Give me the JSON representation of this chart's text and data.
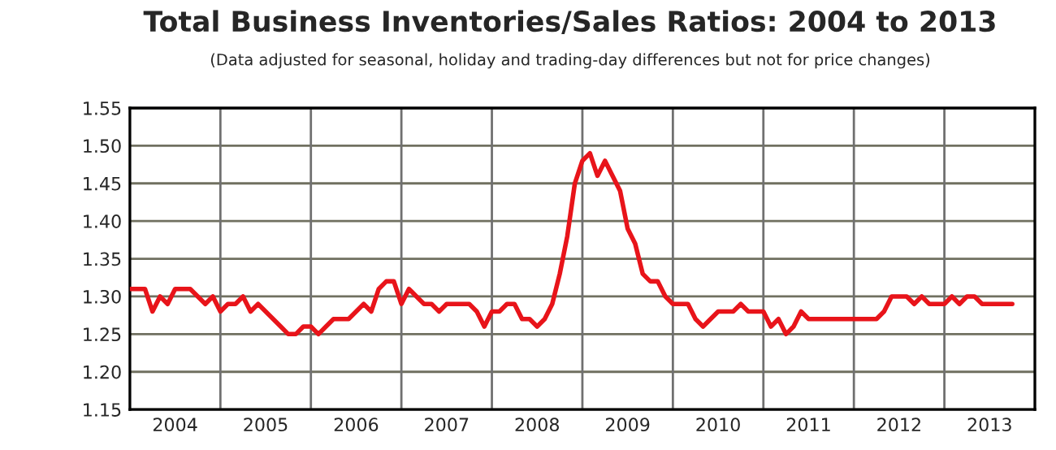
{
  "chart_data": {
    "type": "line",
    "title": "Total Business Inventories/Sales Ratios: 2004 to 2013",
    "subtitle": "(Data adjusted for seasonal, holiday and trading-day differences but not for price changes)",
    "x": [
      "2004-01",
      "2004-02",
      "2004-03",
      "2004-04",
      "2004-05",
      "2004-06",
      "2004-07",
      "2004-08",
      "2004-09",
      "2004-10",
      "2004-11",
      "2004-12",
      "2005-01",
      "2005-02",
      "2005-03",
      "2005-04",
      "2005-05",
      "2005-06",
      "2005-07",
      "2005-08",
      "2005-09",
      "2005-10",
      "2005-11",
      "2005-12",
      "2006-01",
      "2006-02",
      "2006-03",
      "2006-04",
      "2006-05",
      "2006-06",
      "2006-07",
      "2006-08",
      "2006-09",
      "2006-10",
      "2006-11",
      "2006-12",
      "2007-01",
      "2007-02",
      "2007-03",
      "2007-04",
      "2007-05",
      "2007-06",
      "2007-07",
      "2007-08",
      "2007-09",
      "2007-10",
      "2007-11",
      "2007-12",
      "2008-01",
      "2008-02",
      "2008-03",
      "2008-04",
      "2008-05",
      "2008-06",
      "2008-07",
      "2008-08",
      "2008-09",
      "2008-10",
      "2008-11",
      "2008-12",
      "2009-01",
      "2009-02",
      "2009-03",
      "2009-04",
      "2009-05",
      "2009-06",
      "2009-07",
      "2009-08",
      "2009-09",
      "2009-10",
      "2009-11",
      "2009-12",
      "2010-01",
      "2010-02",
      "2010-03",
      "2010-04",
      "2010-05",
      "2010-06",
      "2010-07",
      "2010-08",
      "2010-09",
      "2010-10",
      "2010-11",
      "2010-12",
      "2011-01",
      "2011-02",
      "2011-03",
      "2011-04",
      "2011-05",
      "2011-06",
      "2011-07",
      "2011-08",
      "2011-09",
      "2011-10",
      "2011-11",
      "2011-12",
      "2012-01",
      "2012-02",
      "2012-03",
      "2012-04",
      "2012-05",
      "2012-06",
      "2012-07",
      "2012-08",
      "2012-09",
      "2012-10",
      "2012-11",
      "2012-12",
      "2013-01",
      "2013-02",
      "2013-03",
      "2013-04",
      "2013-05",
      "2013-06",
      "2013-07",
      "2013-08",
      "2013-09",
      "2013-10"
    ],
    "series": [
      {
        "color": "#e8141a",
        "values": [
          1.31,
          1.31,
          1.31,
          1.28,
          1.3,
          1.29,
          1.31,
          1.31,
          1.31,
          1.3,
          1.29,
          1.3,
          1.28,
          1.29,
          1.29,
          1.3,
          1.28,
          1.29,
          1.28,
          1.27,
          1.26,
          1.25,
          1.25,
          1.26,
          1.26,
          1.25,
          1.26,
          1.27,
          1.27,
          1.27,
          1.28,
          1.29,
          1.28,
          1.31,
          1.32,
          1.32,
          1.29,
          1.31,
          1.3,
          1.29,
          1.29,
          1.28,
          1.29,
          1.29,
          1.29,
          1.29,
          1.28,
          1.26,
          1.28,
          1.28,
          1.29,
          1.29,
          1.27,
          1.27,
          1.26,
          1.27,
          1.29,
          1.33,
          1.38,
          1.45,
          1.48,
          1.49,
          1.46,
          1.48,
          1.46,
          1.44,
          1.39,
          1.37,
          1.33,
          1.32,
          1.32,
          1.3,
          1.29,
          1.29,
          1.29,
          1.27,
          1.26,
          1.27,
          1.28,
          1.28,
          1.28,
          1.29,
          1.28,
          1.28,
          1.28,
          1.26,
          1.27,
          1.25,
          1.26,
          1.28,
          1.27,
          1.27,
          1.27,
          1.27,
          1.27,
          1.27,
          1.27,
          1.27,
          1.27,
          1.27,
          1.28,
          1.3,
          1.3,
          1.3,
          1.29,
          1.3,
          1.29,
          1.29,
          1.29,
          1.3,
          1.29,
          1.3,
          1.3,
          1.29,
          1.29,
          1.29,
          1.29,
          1.29
        ]
      }
    ],
    "xlim": [
      "2004-01",
      "2014-01"
    ],
    "xticks": [
      {
        "value": "2004-07",
        "label": "2004"
      },
      {
        "value": "2005-01",
        "label": null
      },
      {
        "value": "2005-07",
        "label": "2005"
      },
      {
        "value": "2006-01",
        "label": null
      },
      {
        "value": "2006-07",
        "label": "2006"
      },
      {
        "value": "2007-01",
        "label": null
      },
      {
        "value": "2007-07",
        "label": "2007"
      },
      {
        "value": "2008-01",
        "label": null
      },
      {
        "value": "2008-07",
        "label": "2008"
      },
      {
        "value": "2009-01",
        "label": null
      },
      {
        "value": "2009-07",
        "label": "2009"
      },
      {
        "value": "2010-01",
        "label": null
      },
      {
        "value": "2010-07",
        "label": "2010"
      },
      {
        "value": "2011-01",
        "label": null
      },
      {
        "value": "2011-07",
        "label": "2011"
      },
      {
        "value": "2012-01",
        "label": null
      },
      {
        "value": "2012-07",
        "label": "2012"
      },
      {
        "value": "2013-01",
        "label": null
      },
      {
        "value": "2013-07",
        "label": "2013"
      }
    ],
    "ylim": [
      1.15,
      1.55
    ],
    "yticks": [
      {
        "value": 1.15,
        "label": "1.15"
      },
      {
        "value": 1.2,
        "label": "1.20"
      },
      {
        "value": 1.25,
        "label": "1.25"
      },
      {
        "value": 1.3,
        "label": "1.30"
      },
      {
        "value": 1.35,
        "label": "1.35"
      },
      {
        "value": 1.4,
        "label": "1.40"
      },
      {
        "value": 1.45,
        "label": "1.45"
      },
      {
        "value": 1.5,
        "label": "1.50"
      },
      {
        "value": 1.55,
        "label": "1.55"
      }
    ],
    "grid": true,
    "line_style": "solid",
    "marker": "none",
    "legend": false
  }
}
